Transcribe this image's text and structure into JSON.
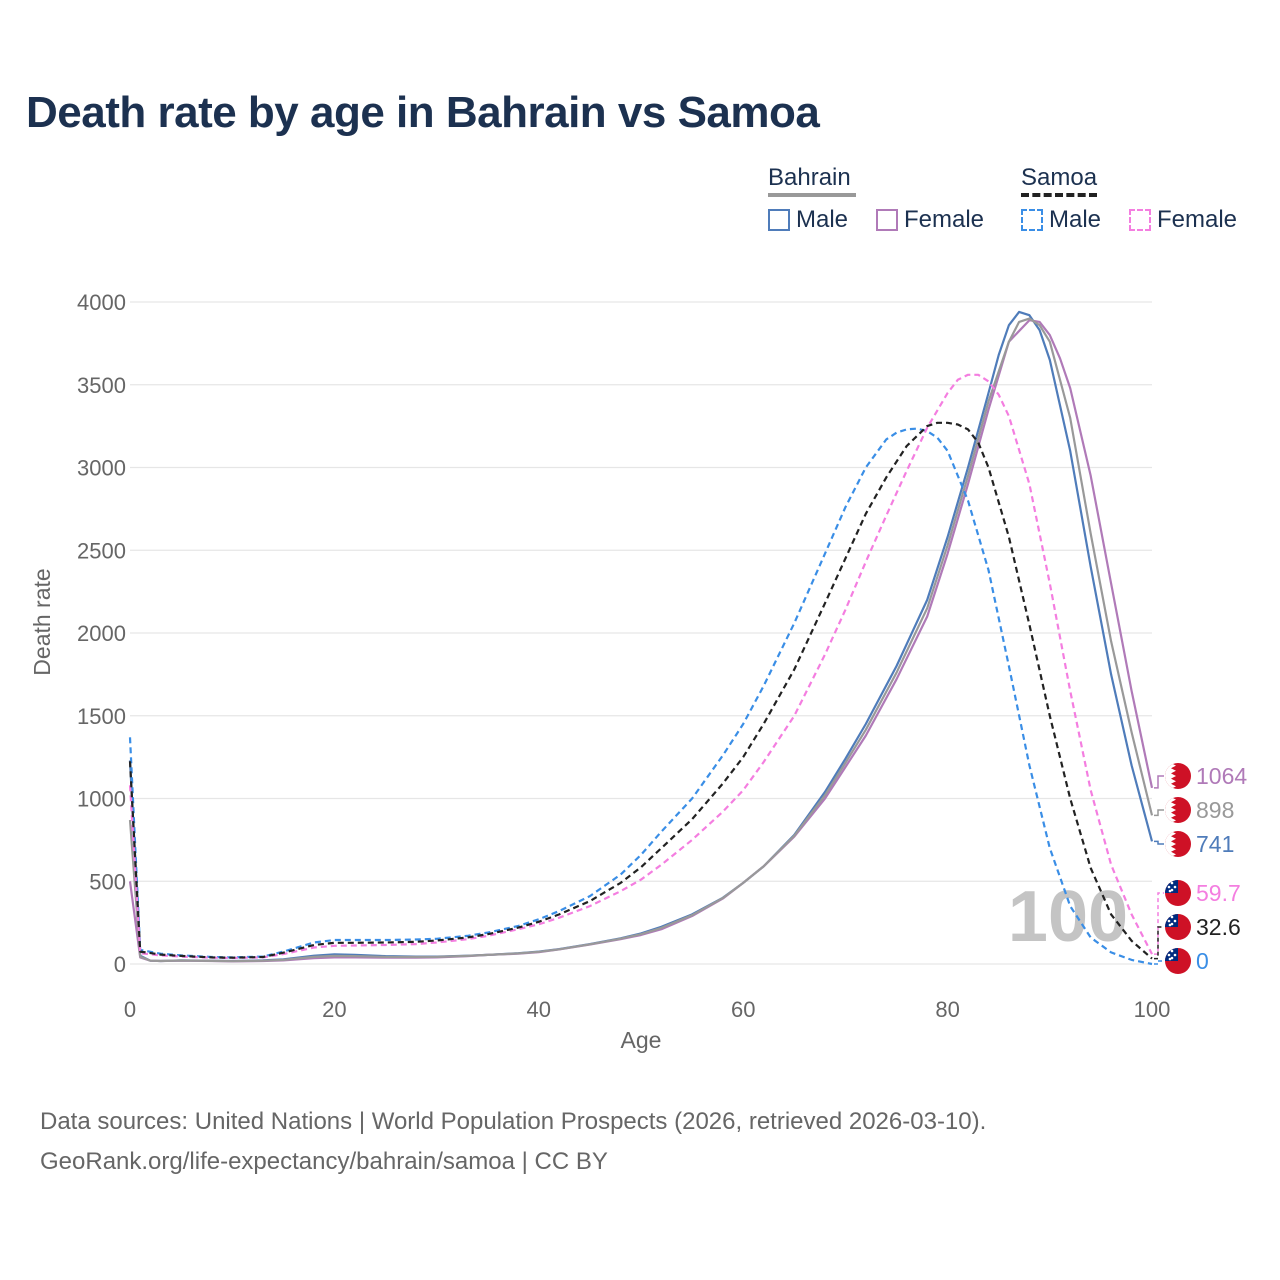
{
  "title": "Death rate by age in Bahrain vs Samoa",
  "legend": {
    "groups": [
      {
        "name": "Bahrain",
        "line_color": "#999999",
        "dash": false
      },
      {
        "name": "Samoa",
        "line_color": "#222222",
        "dash": true
      }
    ],
    "items": [
      {
        "label": "Male",
        "color": "#4f7cba",
        "dash": false
      },
      {
        "label": "Female",
        "color": "#b07ab8",
        "dash": false
      },
      {
        "label": "Male",
        "color": "#3a8ee6",
        "dash": true
      },
      {
        "label": "Female",
        "color": "#f47ee0",
        "dash": true
      }
    ]
  },
  "footer": {
    "line1": "Data sources: United Nations | World Population Prospects (2026, retrieved 2026-03-10).",
    "line2": "GeoRank.org/life-expectancy/bahrain/samoa | CC BY"
  },
  "chart_data": {
    "type": "line",
    "title": "Death rate by age in Bahrain vs Samoa",
    "xlabel": "Age",
    "ylabel": "Death rate",
    "xlim": [
      0,
      100
    ],
    "ylim": [
      0,
      4000
    ],
    "xticks": [
      0,
      20,
      40,
      60,
      80,
      100
    ],
    "yticks": [
      0,
      500,
      1000,
      1500,
      2000,
      2500,
      3000,
      3500,
      4000
    ],
    "grid": true,
    "current_age_label": "100",
    "series": [
      {
        "name": "Bahrain Male",
        "country": "Bahrain",
        "sex": "Male",
        "color": "#4f7cba",
        "dash": false,
        "end_label": "741",
        "x": [
          0,
          1,
          2,
          3,
          5,
          8,
          10,
          13,
          15,
          18,
          20,
          22,
          25,
          28,
          30,
          33,
          35,
          38,
          40,
          42,
          45,
          48,
          50,
          52,
          55,
          58,
          60,
          62,
          65,
          68,
          70,
          72,
          75,
          78,
          80,
          82,
          84,
          85,
          86,
          87,
          88,
          89,
          90,
          92,
          94,
          96,
          98,
          100
        ],
        "y": [
          1230,
          50,
          20,
          18,
          22,
          20,
          18,
          22,
          28,
          50,
          58,
          55,
          48,
          45,
          45,
          50,
          55,
          65,
          75,
          90,
          120,
          155,
          185,
          225,
          300,
          400,
          490,
          590,
          780,
          1040,
          1240,
          1450,
          1800,
          2200,
          2580,
          3000,
          3450,
          3680,
          3860,
          3940,
          3920,
          3830,
          3650,
          3100,
          2400,
          1750,
          1200,
          741
        ]
      },
      {
        "name": "Bahrain Female",
        "country": "Bahrain",
        "sex": "Female",
        "color": "#b07ab8",
        "dash": false,
        "end_label": "1064",
        "x": [
          0,
          1,
          2,
          3,
          5,
          8,
          10,
          13,
          15,
          18,
          20,
          22,
          25,
          28,
          30,
          33,
          35,
          38,
          40,
          42,
          45,
          48,
          50,
          52,
          55,
          58,
          60,
          62,
          65,
          68,
          70,
          72,
          75,
          78,
          80,
          82,
          84,
          86,
          88,
          89,
          90,
          91,
          92,
          94,
          96,
          98,
          100
        ],
        "y": [
          500,
          40,
          20,
          18,
          20,
          18,
          16,
          18,
          22,
          35,
          40,
          40,
          38,
          38,
          40,
          48,
          55,
          62,
          72,
          88,
          118,
          150,
          175,
          210,
          290,
          395,
          490,
          590,
          770,
          1000,
          1190,
          1380,
          1720,
          2100,
          2480,
          2900,
          3350,
          3760,
          3890,
          3880,
          3800,
          3660,
          3480,
          2950,
          2300,
          1650,
          1064
        ]
      },
      {
        "name": "Bahrain Average",
        "country": "Bahrain",
        "sex": "Average",
        "color": "#999999",
        "dash": false,
        "end_label": "898",
        "x": [
          0,
          1,
          2,
          3,
          5,
          8,
          10,
          13,
          15,
          18,
          20,
          22,
          25,
          28,
          30,
          33,
          35,
          38,
          40,
          42,
          45,
          48,
          50,
          52,
          55,
          58,
          60,
          62,
          65,
          68,
          70,
          72,
          75,
          78,
          80,
          82,
          84,
          86,
          87,
          88,
          89,
          90,
          92,
          94,
          96,
          98,
          100
        ],
        "y": [
          870,
          45,
          20,
          18,
          21,
          19,
          17,
          20,
          25,
          43,
          49,
          48,
          43,
          42,
          43,
          49,
          55,
          64,
          74,
          89,
          119,
          153,
          180,
          218,
          295,
          398,
          490,
          590,
          775,
          1020,
          1215,
          1415,
          1760,
          2150,
          2530,
          2950,
          3400,
          3760,
          3880,
          3900,
          3860,
          3760,
          3300,
          2600,
          1950,
          1400,
          898
        ]
      },
      {
        "name": "Samoa Male",
        "country": "Samoa",
        "sex": "Male",
        "color": "#3a8ee6",
        "dash": true,
        "end_label": "0",
        "x": [
          0,
          1,
          3,
          5,
          8,
          10,
          13,
          15,
          18,
          20,
          22,
          25,
          28,
          30,
          33,
          35,
          38,
          40,
          42,
          45,
          48,
          50,
          52,
          55,
          58,
          60,
          62,
          65,
          68,
          70,
          72,
          74,
          75,
          76,
          77,
          78,
          79,
          80,
          82,
          84,
          86,
          88,
          90,
          92,
          94,
          96,
          98,
          100
        ],
        "y": [
          1370,
          85,
          62,
          52,
          42,
          40,
          45,
          75,
          130,
          145,
          145,
          145,
          148,
          152,
          170,
          190,
          230,
          270,
          320,
          410,
          540,
          660,
          800,
          1000,
          1260,
          1450,
          1680,
          2060,
          2480,
          2760,
          3000,
          3170,
          3210,
          3230,
          3235,
          3220,
          3180,
          3100,
          2800,
          2380,
          1800,
          1200,
          700,
          350,
          160,
          70,
          25,
          0
        ]
      },
      {
        "name": "Samoa Female",
        "country": "Samoa",
        "sex": "Female",
        "color": "#f47ee0",
        "dash": true,
        "end_label": "59.7",
        "x": [
          0,
          1,
          3,
          5,
          8,
          10,
          13,
          15,
          18,
          20,
          22,
          25,
          28,
          30,
          33,
          35,
          38,
          40,
          42,
          45,
          48,
          50,
          52,
          55,
          58,
          60,
          62,
          65,
          68,
          70,
          72,
          74,
          76,
          78,
          80,
          81,
          82,
          83,
          84,
          85,
          86,
          88,
          90,
          92,
          94,
          96,
          98,
          100
        ],
        "y": [
          1080,
          65,
          52,
          45,
          38,
          36,
          40,
          60,
          100,
          110,
          112,
          115,
          120,
          130,
          150,
          170,
          210,
          240,
          280,
          350,
          440,
          510,
          600,
          750,
          920,
          1050,
          1220,
          1500,
          1870,
          2140,
          2430,
          2710,
          2980,
          3240,
          3450,
          3530,
          3560,
          3560,
          3520,
          3440,
          3310,
          2900,
          2300,
          1650,
          1050,
          600,
          300,
          59.7
        ]
      },
      {
        "name": "Samoa Average",
        "country": "Samoa",
        "sex": "Average",
        "color": "#222222",
        "dash": true,
        "end_label": "32.6",
        "x": [
          0,
          1,
          3,
          5,
          8,
          10,
          13,
          15,
          18,
          20,
          22,
          25,
          28,
          30,
          33,
          35,
          38,
          40,
          42,
          45,
          48,
          50,
          52,
          55,
          58,
          60,
          62,
          65,
          68,
          70,
          72,
          74,
          76,
          78,
          79,
          80,
          81,
          82,
          83,
          84,
          86,
          88,
          90,
          92,
          94,
          96,
          98,
          100
        ],
        "y": [
          1225,
          75,
          57,
          49,
          40,
          38,
          42,
          68,
          115,
          128,
          128,
          130,
          134,
          142,
          160,
          180,
          220,
          255,
          300,
          380,
          490,
          585,
          700,
          875,
          1090,
          1250,
          1450,
          1780,
          2180,
          2450,
          2720,
          2940,
          3130,
          3250,
          3270,
          3270,
          3260,
          3230,
          3150,
          3000,
          2580,
          2050,
          1500,
          1000,
          580,
          300,
          140,
          32.6
        ]
      }
    ],
    "end_markers": [
      {
        "label": "1064",
        "country": "Bahrain",
        "color": "#b07ab8",
        "value": 1064
      },
      {
        "label": "898",
        "country": "Bahrain",
        "color": "#999999",
        "value": 898
      },
      {
        "label": "741",
        "country": "Bahrain",
        "color": "#4f7cba",
        "value": 741
      },
      {
        "label": "59.7",
        "country": "Samoa",
        "color": "#f47ee0",
        "value": 59.7
      },
      {
        "label": "32.6",
        "country": "Samoa",
        "color": "#222222",
        "value": 32.6
      },
      {
        "label": "0",
        "country": "Samoa",
        "color": "#3a8ee6",
        "value": 0
      }
    ]
  }
}
